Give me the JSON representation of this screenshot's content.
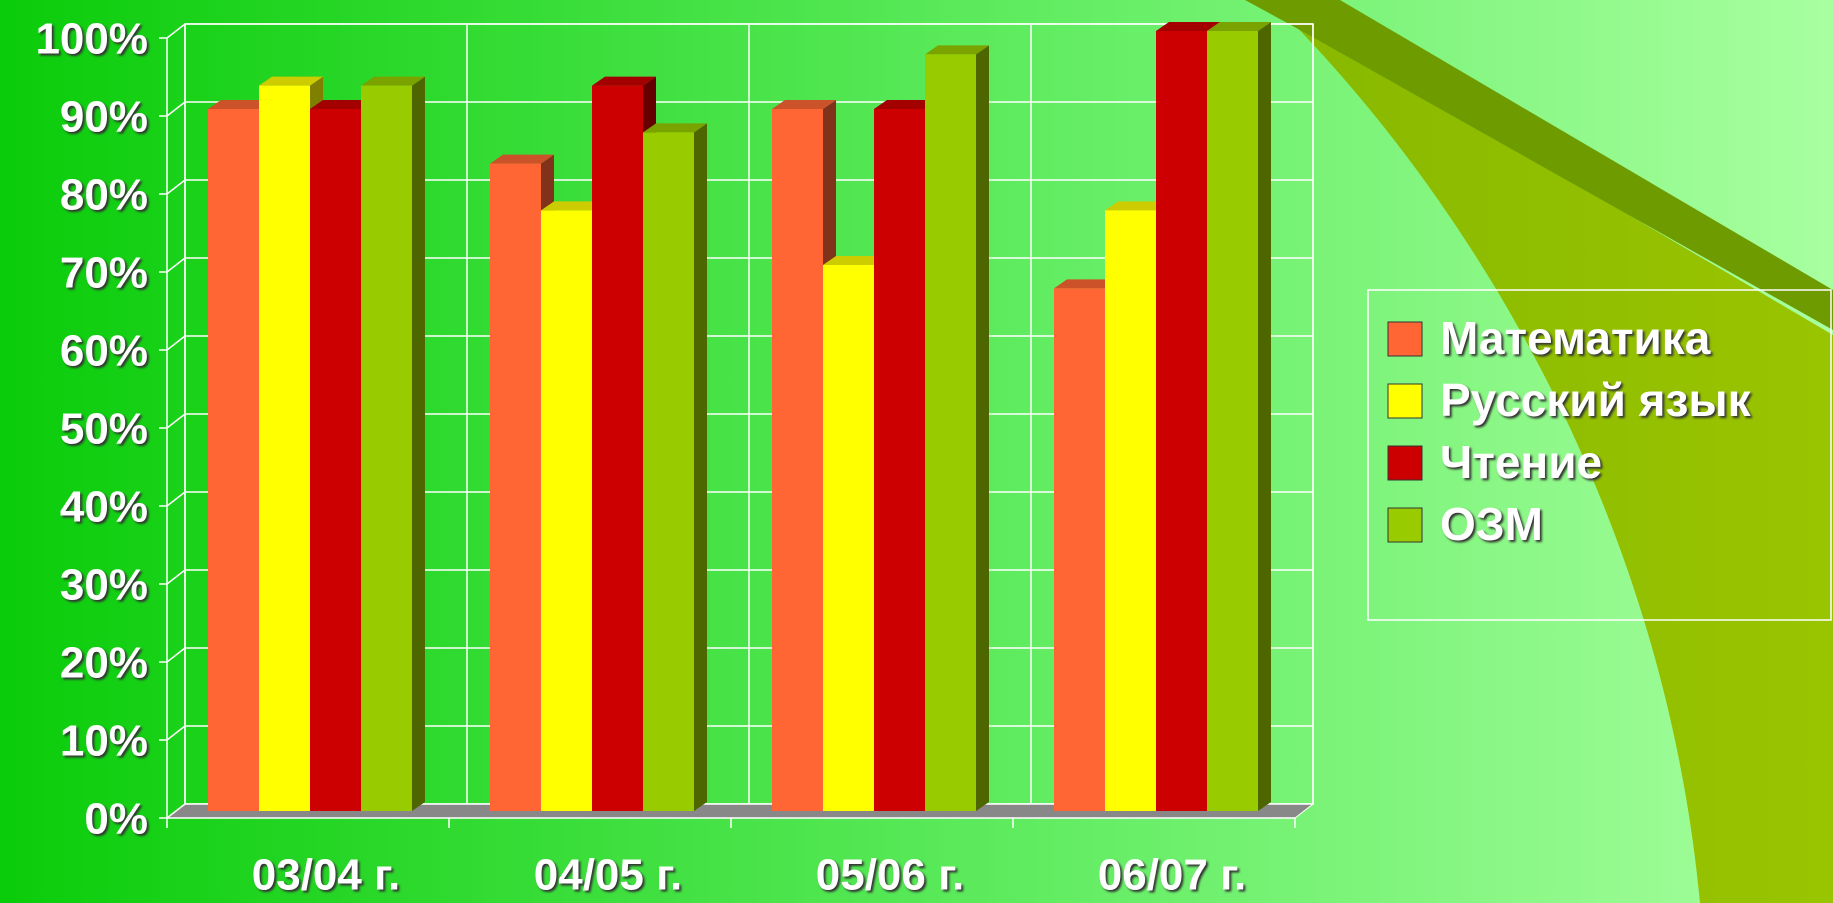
{
  "chart_data": {
    "type": "bar3d",
    "categories": [
      "03/04 г.",
      "04/05 г.",
      "05/06 г.",
      "06/07 г."
    ],
    "series": [
      {
        "name": "Математика",
        "color": "#ff6633",
        "values": [
          90,
          83,
          90,
          67
        ]
      },
      {
        "name": "Русский язык",
        "color": "#ffff00",
        "values": [
          93,
          77,
          70,
          77
        ]
      },
      {
        "name": "Чтение",
        "color": "#cc0000",
        "values": [
          90,
          93,
          90,
          100
        ]
      },
      {
        "name": "ОЗМ",
        "color": "#99cc00",
        "values": [
          93,
          87,
          97,
          100
        ]
      }
    ],
    "ylim": [
      0,
      100
    ],
    "yticks": [
      {
        "value": 0,
        "label": "0%"
      },
      {
        "value": 10,
        "label": "10%"
      },
      {
        "value": 20,
        "label": "20%"
      },
      {
        "value": 30,
        "label": "30%"
      },
      {
        "value": 40,
        "label": "40%"
      },
      {
        "value": 50,
        "label": "50%"
      },
      {
        "value": 60,
        "label": "60%"
      },
      {
        "value": 70,
        "label": "70%"
      },
      {
        "value": 80,
        "label": "80%"
      },
      {
        "value": 90,
        "label": "90%"
      },
      {
        "value": 100,
        "label": "100%"
      }
    ],
    "grid": true,
    "legend": "right"
  }
}
